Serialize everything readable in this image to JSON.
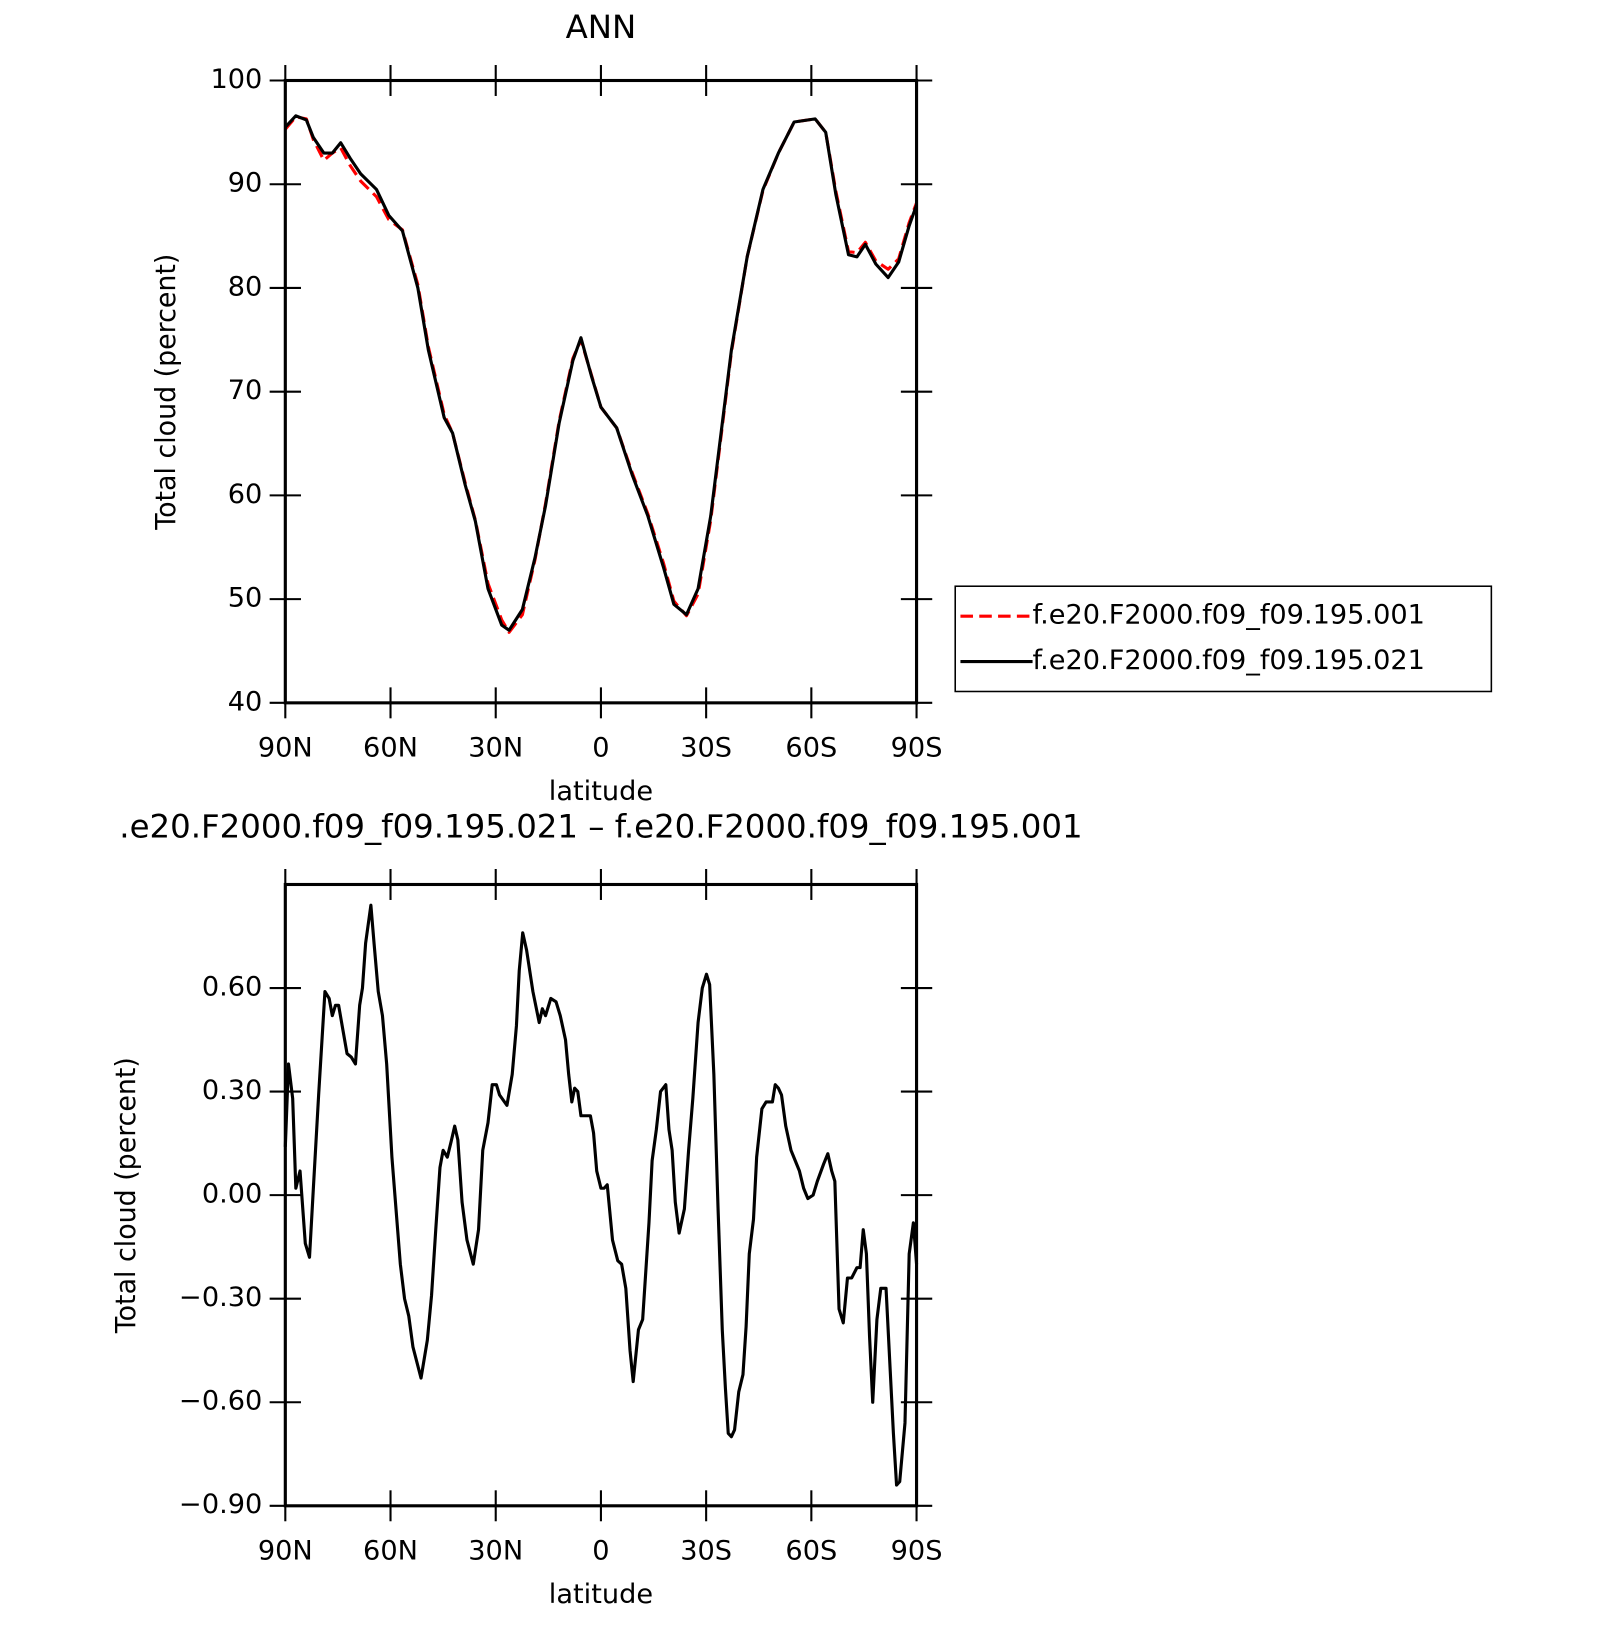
{
  "chart_data": [
    {
      "type": "line",
      "title": "ANN",
      "xlabel": "latitude",
      "ylabel": "Total cloud (percent)",
      "x": [
        90,
        87,
        84,
        82,
        79,
        76.6,
        74.2,
        71.5,
        68.5,
        64,
        60.5,
        56.6,
        52.2,
        49.2,
        44.7,
        42.3,
        38.7,
        35.8,
        32.2,
        28.3,
        26.2,
        22.4,
        18.8,
        15.8,
        11.9,
        8,
        5.7,
        2.7,
        0,
        -4.5,
        -8.9,
        -13.4,
        -17.9,
        -20.8,
        -24.4,
        -27.7,
        -31.3,
        -37.2,
        -41.7,
        -46.2,
        -50.6,
        -55.1,
        -61.1,
        -64.1,
        -67,
        -70.6,
        -73,
        -75.4,
        -78.4,
        -81.9,
        -84.9,
        -87.9,
        -90
      ],
      "series": [
        {
          "name": "f.e20.F2000.f09_f09.195.001",
          "color": "#ff0000",
          "dashed": true,
          "values": [
            95.3,
            96.5,
            96.3,
            94.3,
            92.3,
            93,
            93.5,
            91.8,
            90.3,
            88.8,
            86.6,
            85.6,
            80.3,
            74.3,
            67.8,
            66,
            61.2,
            57.6,
            51.5,
            48,
            46.8,
            48.5,
            53.8,
            59.2,
            67.2,
            73.2,
            75,
            71.6,
            68.5,
            66.5,
            62.2,
            58.2,
            53.4,
            49.8,
            48.4,
            50.5,
            57.6,
            73.8,
            83,
            89.4,
            93,
            96,
            96.3,
            95,
            89.3,
            83.5,
            83.4,
            84.4,
            82.6,
            81.8,
            82.8,
            86.3,
            88.2
          ]
        },
        {
          "name": "f.e20.F2000.f09_f09.195.021",
          "color": "#000000",
          "dashed": false,
          "values": [
            95.5,
            96.6,
            96.2,
            94.5,
            93,
            93,
            94,
            92.5,
            91,
            89.5,
            87,
            85.5,
            80,
            74,
            67.5,
            66,
            61,
            57.5,
            51,
            47.5,
            47,
            49,
            54,
            59,
            67,
            73,
            75.2,
            71.5,
            68.5,
            66.5,
            62,
            58,
            53,
            49.5,
            48.5,
            51,
            58,
            74,
            83,
            89.5,
            93,
            96,
            96.3,
            95,
            89,
            83.2,
            83,
            84.2,
            82.3,
            81,
            82.5,
            86,
            88
          ]
        }
      ],
      "xlim": [
        90,
        -90
      ],
      "xticks": [
        {
          "value": 90,
          "label": "90N"
        },
        {
          "value": 60,
          "label": "60N"
        },
        {
          "value": 30,
          "label": "30N"
        },
        0,
        {
          "value": -30,
          "label": "30S"
        },
        {
          "value": -60,
          "label": "60S"
        },
        {
          "value": -90,
          "label": "90S"
        }
      ],
      "ylim": [
        40,
        100
      ],
      "yticks": [
        40,
        50,
        60,
        70,
        80,
        90,
        100
      ],
      "legend": "right"
    },
    {
      "type": "line",
      "title": ".e20.F2000.f09_f09.195.021 – f.e20.F2000.f09_f09.195.001",
      "xlabel": "latitude",
      "ylabel": "Total cloud (percent)",
      "x": [
        90,
        89.1,
        87.9,
        87.0,
        85.8,
        84.3,
        83.1,
        82.0,
        80.5,
        78.7,
        77.5,
        76.6,
        75.7,
        74.8,
        73.6,
        72.4,
        71.2,
        70.0,
        68.8,
        68.0,
        67.1,
        65.6,
        64.7,
        63.5,
        62.3,
        61.1,
        59.6,
        57.2,
        56.0,
        54.8,
        53.6,
        51.3,
        49.5,
        48.3,
        47.1,
        45.9,
        45.0,
        43.8,
        42.6,
        41.7,
        40.8,
        39.6,
        38.2,
        36.4,
        34.9,
        33.7,
        32.2,
        31.0,
        29.8,
        28.9,
        26.8,
        25.3,
        24.1,
        23.3,
        22.3,
        21.2,
        19.4,
        17.6,
        16.7,
        15.8,
        14.3,
        12.8,
        11.6,
        10.1,
        9.2,
        8.3,
        7.5,
        6.6,
        5.7,
        4.5,
        3.0,
        2.1,
        1.2,
        0,
        -0.9,
        -1.8,
        -3.3,
        -4.8,
        -5.9,
        -7.1,
        -8.3,
        -9.2,
        -10.7,
        -11.9,
        -13.7,
        -14.6,
        -15.8,
        -17.0,
        -18.5,
        -19.4,
        -20.3,
        -21.2,
        -22.3,
        -23.8,
        -25.0,
        -26.2,
        -27.7,
        -28.9,
        -30.1,
        -31.0,
        -32.2,
        -33.4,
        -34.6,
        -35.5,
        -36.3,
        -37.2,
        -38.1,
        -39.3,
        -40.5,
        -41.4,
        -42.3,
        -43.5,
        -44.4,
        -45.9,
        -47.1,
        -48.9,
        -49.7,
        -50.6,
        -51.5,
        -52.7,
        -54.2,
        -55.4,
        -56.6,
        -57.8,
        -59.0,
        -60.5,
        -61.7,
        -63.5,
        -64.7,
        -65.8,
        -66.7,
        -67.9,
        -69.1,
        -70.3,
        -71.5,
        -73.0,
        -73.9,
        -74.8,
        -75.7,
        -76.6,
        -77.5,
        -78.7,
        -79.8,
        -81.3,
        -82.5,
        -83.4,
        -84.3,
        -85.2,
        -86.7,
        -87.9,
        -89.1,
        -90
      ],
      "series": [
        {
          "color": "#000000",
          "dashed": false,
          "values": [
            0.14,
            0.38,
            0.28,
            0.02,
            0.07,
            -0.14,
            -0.18,
            0.02,
            0.29,
            0.59,
            0.57,
            0.52,
            0.55,
            0.55,
            0.48,
            0.41,
            0.4,
            0.38,
            0.55,
            0.6,
            0.73,
            0.84,
            0.73,
            0.59,
            0.52,
            0.38,
            0.11,
            -0.2,
            -0.3,
            -0.35,
            -0.44,
            -0.53,
            -0.42,
            -0.29,
            -0.1,
            0.08,
            0.13,
            0.11,
            0.16,
            0.2,
            0.16,
            -0.02,
            -0.13,
            -0.2,
            -0.1,
            0.13,
            0.21,
            0.32,
            0.32,
            0.29,
            0.26,
            0.35,
            0.49,
            0.65,
            0.76,
            0.71,
            0.59,
            0.5,
            0.54,
            0.52,
            0.57,
            0.56,
            0.52,
            0.45,
            0.35,
            0.27,
            0.31,
            0.3,
            0.23,
            0.23,
            0.23,
            0.18,
            0.07,
            0.02,
            0.02,
            0.03,
            -0.13,
            -0.19,
            -0.2,
            -0.27,
            -0.45,
            -0.54,
            -0.39,
            -0.36,
            -0.08,
            0.1,
            0.19,
            0.3,
            0.32,
            0.19,
            0.13,
            -0.02,
            -0.11,
            -0.04,
            0.13,
            0.28,
            0.5,
            0.6,
            0.64,
            0.61,
            0.35,
            -0.04,
            -0.39,
            -0.56,
            -0.69,
            -0.7,
            -0.68,
            -0.57,
            -0.52,
            -0.38,
            -0.17,
            -0.07,
            0.11,
            0.25,
            0.27,
            0.27,
            0.32,
            0.31,
            0.29,
            0.2,
            0.13,
            0.1,
            0.07,
            0.02,
            -0.01,
            0.0,
            0.04,
            0.09,
            0.12,
            0.07,
            0.04,
            -0.33,
            -0.37,
            -0.24,
            -0.24,
            -0.21,
            -0.21,
            -0.1,
            -0.17,
            -0.41,
            -0.6,
            -0.36,
            -0.27,
            -0.27,
            -0.51,
            -0.69,
            -0.84,
            -0.83,
            -0.66,
            -0.17,
            -0.08,
            -0.2
          ]
        }
      ],
      "xlim": [
        90,
        -90
      ],
      "xticks": [
        {
          "value": 90,
          "label": "90N"
        },
        {
          "value": 60,
          "label": "60N"
        },
        {
          "value": 30,
          "label": "30N"
        },
        0,
        {
          "value": -30,
          "label": "30S"
        },
        {
          "value": -60,
          "label": "60S"
        },
        {
          "value": -90,
          "label": "90S"
        }
      ],
      "ylim": [
        -0.9,
        0.9
      ],
      "yticks": [
        {
          "value": -0.9,
          "label": "−0.90"
        },
        {
          "value": -0.6,
          "label": "−0.60"
        },
        {
          "value": -0.3,
          "label": "−0.30"
        },
        {
          "value": 0,
          "label": "0.00"
        },
        {
          "value": 0.3,
          "label": "0.30"
        },
        {
          "value": 0.6,
          "label": "0.60"
        }
      ]
    }
  ]
}
